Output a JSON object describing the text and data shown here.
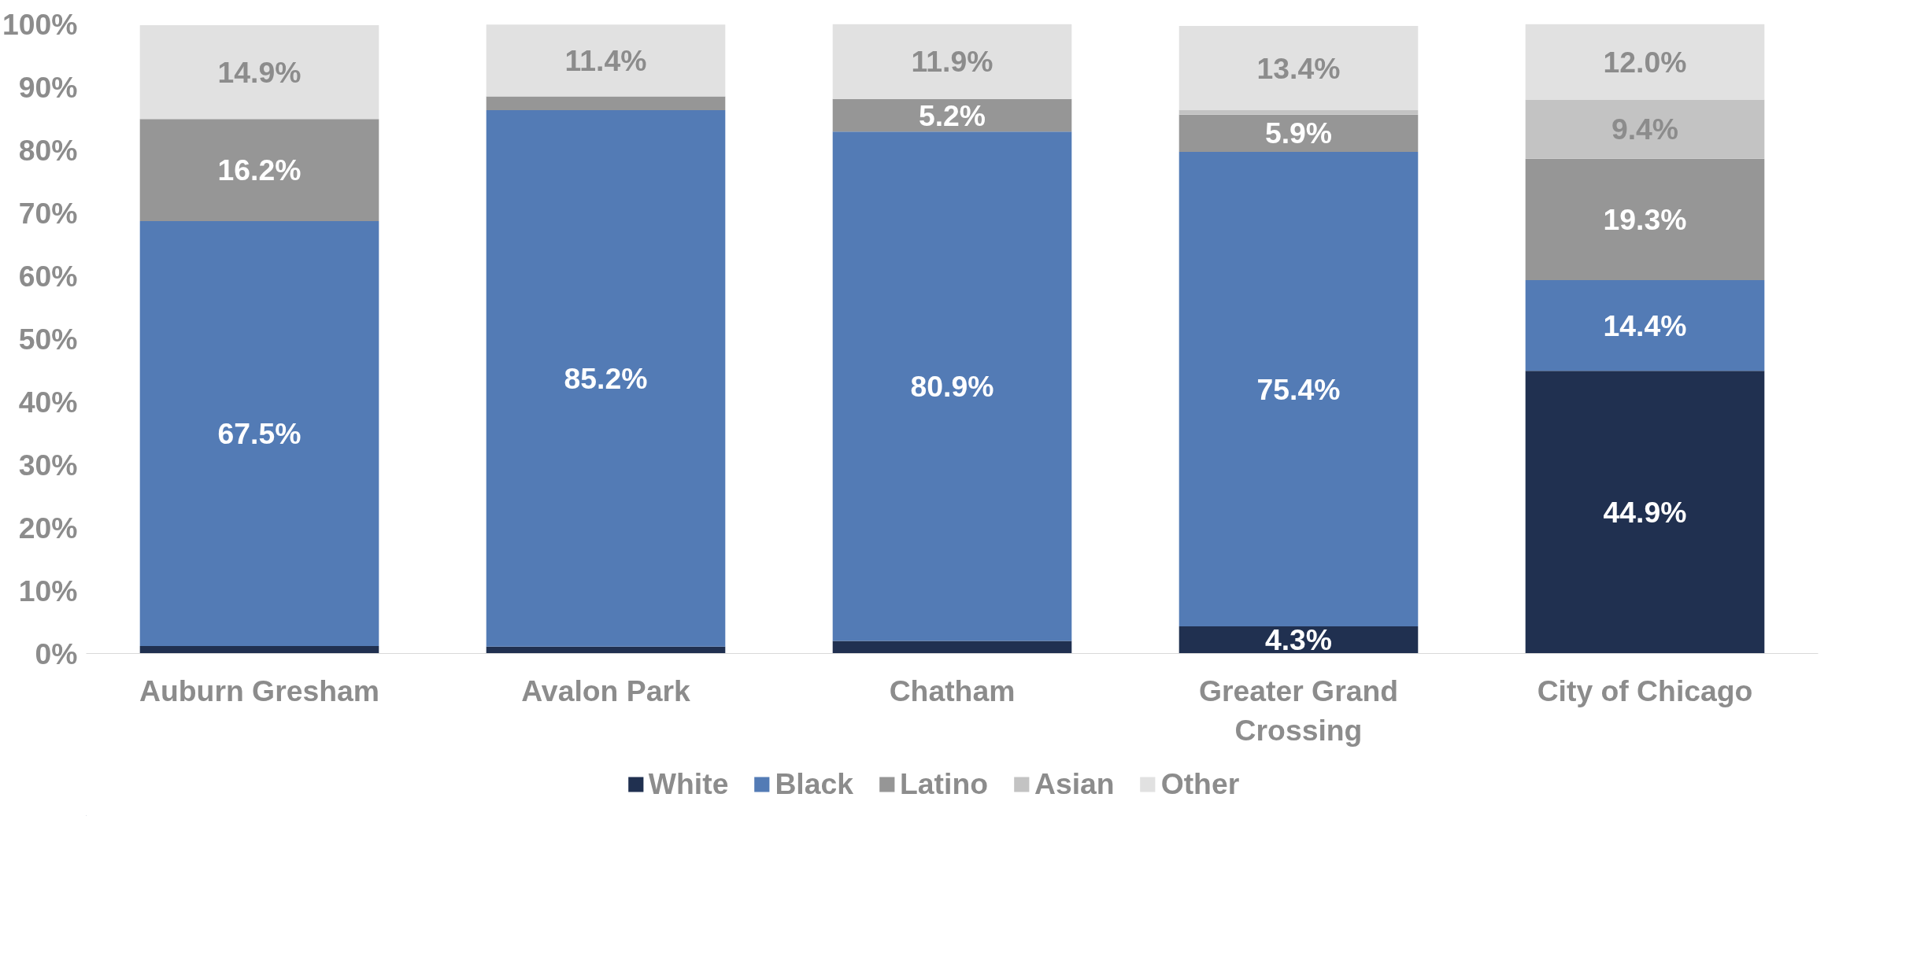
{
  "chart_data": {
    "type": "bar",
    "stacked": true,
    "categories": [
      "Auburn Gresham",
      "Avalon Park",
      "Chatham",
      "Greater Grand Crossing",
      "City of Chicago"
    ],
    "series": [
      {
        "name": "White",
        "color": "#203050",
        "values": [
          1.2,
          1.1,
          2.0,
          4.3,
          44.9
        ],
        "value_labels": [
          null,
          null,
          null,
          "4.3%",
          "44.9%"
        ]
      },
      {
        "name": "Black",
        "color": "#537bb5",
        "values": [
          67.5,
          85.2,
          80.9,
          75.4,
          14.4
        ],
        "value_labels": [
          "67.5%",
          "85.2%",
          "80.9%",
          "75.4%",
          "14.4%"
        ]
      },
      {
        "name": "Latino",
        "color": "#969696",
        "values": [
          16.2,
          2.2,
          5.2,
          5.9,
          19.3
        ],
        "value_labels": [
          "16.2%",
          null,
          "5.2%",
          "5.9%",
          "19.3%"
        ]
      },
      {
        "name": "Asian",
        "color": "#c3c3c3",
        "values": [
          null,
          null,
          0.0,
          0.7,
          9.4
        ],
        "value_labels": [
          null,
          null,
          null,
          null,
          "9.4%"
        ]
      },
      {
        "name": "Other",
        "color": "#e1e1e1",
        "values": [
          14.9,
          11.4,
          11.9,
          13.4,
          12.0
        ],
        "value_labels": [
          "14.9%",
          "11.4%",
          "11.9%",
          "13.4%",
          "12.0%"
        ]
      }
    ],
    "ylim": [
      0,
      100
    ],
    "yticks": [
      {
        "value": 0,
        "label": "0%"
      },
      {
        "value": 10,
        "label": "10%"
      },
      {
        "value": 20,
        "label": "20%"
      },
      {
        "value": 30,
        "label": "30%"
      },
      {
        "value": 40,
        "label": "40%"
      },
      {
        "value": 50,
        "label": "50%"
      },
      {
        "value": 60,
        "label": "60%"
      },
      {
        "value": 70,
        "label": "70%"
      },
      {
        "value": 80,
        "label": "80%"
      },
      {
        "value": 90,
        "label": "90%"
      },
      {
        "value": 100,
        "label": "100%"
      }
    ],
    "grid": false,
    "legend": "bottom"
  }
}
